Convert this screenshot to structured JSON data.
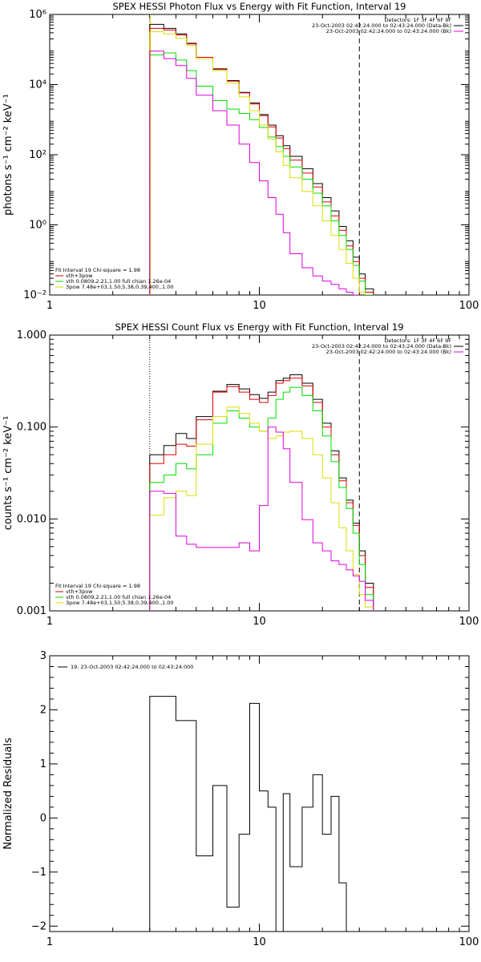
{
  "chart_data": [
    {
      "type": "line",
      "title": "SPEX HESSI Photon Flux vs Energy with Fit Function, Interval 19",
      "ylabel": "photons s⁻¹ cm⁻² keV⁻¹",
      "xlabel": "",
      "xscale": "log",
      "yscale": "log",
      "xlim": [
        1,
        100
      ],
      "ylim": [
        0.01,
        1000000
      ],
      "x_ticks": [
        {
          "v": 1,
          "label": "1"
        },
        {
          "v": 10,
          "label": "10"
        },
        {
          "v": 100,
          "label": "100"
        }
      ],
      "y_ticks": [
        {
          "v": 1000000,
          "label": "10⁶"
        },
        {
          "v": 10000,
          "label": "10⁴"
        },
        {
          "v": 100,
          "label": "10²"
        },
        {
          "v": 1,
          "label": "10⁰"
        },
        {
          "v": 0.01,
          "label": "10⁻²"
        }
      ],
      "grid": false,
      "legend_position": "top-right",
      "legend": [
        {
          "text": "Detectors: 1F 3F 4F 6F 9F",
          "color": ""
        },
        {
          "text": "23-Oct-2003 02:42:24.000 to 02:43:24.000 (Data-Bk)",
          "color": "#000000"
        },
        {
          "text": "23-Oct-2003 02:42:24.000 to 02:43:24.000 (Bk)",
          "color": "#dd00dd"
        }
      ],
      "fit_info": [
        {
          "text": "Fit Interval 19    Chi-square = 1.98",
          "color": ""
        },
        {
          "text": "vth+3pow",
          "color": "#dd0000"
        },
        {
          "text": "vth 0.0809,2.21,1.00  full chian 1.26e-04",
          "color": "#00dd00"
        },
        {
          "text": "3pow 7.48e+03,1.50,5.38,0.39,400.,1.00",
          "color": "#dddd00"
        }
      ],
      "vlines": [
        {
          "x": 3,
          "style": "dotted",
          "color": "#000000"
        },
        {
          "x": 3.02,
          "style": "solid",
          "color": "#dddd00"
        },
        {
          "x": 30,
          "style": "dashed",
          "color": "#000000"
        }
      ],
      "edges": [
        3,
        3.5,
        4,
        4.5,
        5,
        6,
        7,
        8,
        9,
        10,
        11,
        12,
        13,
        14,
        16,
        18,
        20,
        22,
        24,
        26,
        28,
        30,
        32,
        35
      ],
      "series": [
        {
          "name": "Data-Bk",
          "color": "#000000",
          "values": [
            520000,
            400000,
            280000,
            150000,
            60000,
            28000,
            13000,
            6000,
            3000,
            1400,
            700,
            350,
            180,
            90,
            40,
            15,
            6,
            2.5,
            0.9,
            0.35,
            0.12,
            0.04,
            0.015
          ]
        },
        {
          "name": "vth+3pow",
          "color": "#dd0000",
          "values": [
            400000,
            360000,
            260000,
            145000,
            60000,
            27000,
            12500,
            5800,
            2800,
            1300,
            620,
            300,
            150,
            70,
            30,
            12,
            4.5,
            1.8,
            0.7,
            0.25,
            0.09,
            0.03,
            0.012
          ]
        },
        {
          "name": "vth",
          "color": "#00dd00",
          "values": [
            70000,
            80000,
            50000,
            25000,
            9000,
            3500,
            2000,
            1500,
            1000,
            600,
            320,
            170,
            90,
            45,
            20,
            8,
            3.5,
            1.3,
            0.5,
            0.2,
            0.07,
            0.025,
            0.01
          ]
        },
        {
          "name": "3pow",
          "color": "#dddd00",
          "values": [
            320000,
            280000,
            210000,
            130000,
            55000,
            25000,
            11000,
            4500,
            1800,
            700,
            280,
            120,
            50,
            22,
            9,
            3.5,
            1.3,
            0.5,
            0.2,
            0.08,
            0.03,
            0.012,
            0.005
          ]
        },
        {
          "name": "Bk",
          "color": "#dd00dd",
          "values": [
            90000,
            55000,
            35000,
            15000,
            5000,
            1800,
            700,
            200,
            60,
            18,
            6,
            2,
            0.6,
            0.15,
            0.06,
            0.035,
            0.025,
            0.02,
            0.015,
            0.012,
            0.01,
            0.008,
            0.007
          ]
        }
      ]
    },
    {
      "type": "line",
      "title": "SPEX HESSI Count Flux vs Energy with Fit Function, Interval 19",
      "ylabel": "counts s⁻¹ cm⁻² keV⁻¹",
      "xlabel": "",
      "xscale": "log",
      "yscale": "log",
      "xlim": [
        1,
        100
      ],
      "ylim": [
        0.001,
        1
      ],
      "x_ticks": [
        {
          "v": 1,
          "label": "1"
        },
        {
          "v": 10,
          "label": "10"
        },
        {
          "v": 100,
          "label": "100"
        }
      ],
      "y_ticks": [
        {
          "v": 1,
          "label": "1.000"
        },
        {
          "v": 0.1,
          "label": "0.100"
        },
        {
          "v": 0.01,
          "label": "0.010"
        },
        {
          "v": 0.001,
          "label": "0.001"
        }
      ],
      "grid": false,
      "legend_position": "top-right",
      "legend": [
        {
          "text": "Detectors: 1F 3F 4F 6F 9F",
          "color": ""
        },
        {
          "text": "23-Oct-2003 02:42:24.000 to 02:43:24.000 (Data-Bk)",
          "color": "#000000"
        },
        {
          "text": "23-Oct-2003 02:42:24.000 to 02:43:24.000 (Bk)",
          "color": "#dd00dd"
        }
      ],
      "fit_info": [
        {
          "text": "Fit Interval 19    Chi-square = 1.98",
          "color": ""
        },
        {
          "text": "vth+3pow",
          "color": "#dd0000"
        },
        {
          "text": "vth 0.0809,2.21,1.00  full chian 1.26e-04",
          "color": "#00dd00"
        },
        {
          "text": "3pow 7.48e+03,1.50,5.38,0.39,400.,1.00",
          "color": "#dddd00"
        }
      ],
      "vlines": [
        {
          "x": 3,
          "style": "dotted",
          "color": "#000000"
        },
        {
          "x": 30,
          "style": "dashed",
          "color": "#000000"
        }
      ],
      "edges": [
        3,
        3.5,
        4,
        4.5,
        5,
        6,
        7,
        8,
        9,
        10,
        11,
        12,
        13,
        14,
        16,
        18,
        20,
        22,
        24,
        26,
        28,
        30,
        32,
        35
      ],
      "series": [
        {
          "name": "Data-Bk",
          "color": "#000000",
          "values": [
            0.05,
            0.063,
            0.085,
            0.075,
            0.13,
            0.245,
            0.29,
            0.26,
            0.225,
            0.205,
            0.24,
            0.32,
            0.34,
            0.37,
            0.3,
            0.2,
            0.11,
            0.055,
            0.028,
            0.016,
            0.009,
            0.0045,
            0.002
          ]
        },
        {
          "name": "vth+3pow",
          "color": "#dd0000",
          "values": [
            0.04,
            0.05,
            0.065,
            0.062,
            0.12,
            0.24,
            0.275,
            0.24,
            0.2,
            0.185,
            0.22,
            0.3,
            0.32,
            0.34,
            0.28,
            0.185,
            0.1,
            0.05,
            0.026,
            0.015,
            0.0085,
            0.004,
            0.0018
          ]
        },
        {
          "name": "vth",
          "color": "#00dd00",
          "values": [
            0.025,
            0.03,
            0.04,
            0.035,
            0.05,
            0.11,
            0.15,
            0.125,
            0.1,
            0.09,
            0.125,
            0.2,
            0.24,
            0.27,
            0.22,
            0.15,
            0.08,
            0.042,
            0.022,
            0.013,
            0.007,
            0.0032,
            0.0015
          ]
        },
        {
          "name": "3pow",
          "color": "#dddd00",
          "values": [
            0.011,
            0.017,
            0.02,
            0.018,
            0.065,
            0.13,
            0.165,
            0.14,
            0.11,
            0.09,
            0.075,
            0.08,
            0.088,
            0.09,
            0.075,
            0.05,
            0.028,
            0.015,
            0.008,
            0.0045,
            0.0025,
            0.0015,
            0.0011
          ]
        },
        {
          "name": "Bk",
          "color": "#dd00dd",
          "values": [
            0.02,
            0.019,
            0.0065,
            0.0053,
            0.0049,
            0.0049,
            0.0049,
            0.0055,
            0.0045,
            0.014,
            0.1,
            0.088,
            0.058,
            0.025,
            0.0098,
            0.0055,
            0.0045,
            0.0035,
            0.0032,
            0.0028,
            0.0024,
            0.0021,
            0.0013
          ]
        }
      ]
    },
    {
      "type": "line",
      "title": "",
      "ylabel": "Normalized Residuals",
      "xlabel": "",
      "xscale": "log",
      "yscale": "linear",
      "xlim": [
        1,
        100
      ],
      "ylim": [
        -2.1,
        3.0
      ],
      "x_ticks": [
        {
          "v": 1,
          "label": "1"
        },
        {
          "v": 10,
          "label": "10"
        },
        {
          "v": 100,
          "label": "100"
        }
      ],
      "y_ticks": [
        {
          "v": 3,
          "label": "3"
        },
        {
          "v": 2,
          "label": "2"
        },
        {
          "v": 1,
          "label": "1"
        },
        {
          "v": 0,
          "label": "0"
        },
        {
          "v": -1,
          "label": "−1"
        },
        {
          "v": -2,
          "label": "−2"
        }
      ],
      "grid": false,
      "legend_position": "top-left",
      "legend": [
        {
          "text": "19. 23-Oct-2003 02:42:24.000 to 02:43:24.000",
          "color": "#000000"
        }
      ],
      "fit_info": [],
      "vlines": [],
      "edges": [
        3,
        3.5,
        4,
        4.5,
        5,
        6,
        7,
        8,
        9,
        10,
        11,
        12,
        13,
        14,
        16,
        18,
        20,
        22,
        24,
        26,
        28,
        30
      ],
      "series": [
        {
          "name": "19",
          "color": "#000000",
          "values": [
            2.25,
            2.25,
            1.8,
            1.8,
            -0.7,
            0.6,
            -1.65,
            -0.3,
            2.12,
            0.5,
            0.2,
            -2.1,
            0.45,
            -0.9,
            0.2,
            0.8,
            -0.3,
            0.4,
            -1.2,
            -2.1,
            -2.1
          ]
        }
      ]
    }
  ]
}
